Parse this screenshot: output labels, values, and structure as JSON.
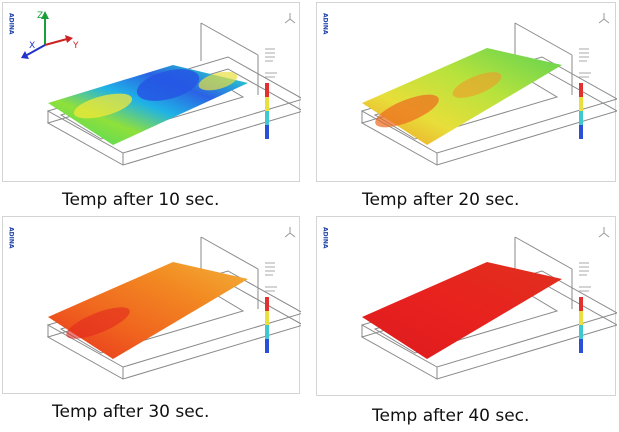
{
  "brand_text": "ADINA",
  "panels": [
    {
      "caption": "Temp after 10 sec.",
      "field": "blue-green",
      "axis_labels": {
        "z": "Z",
        "x": "X",
        "y": "Y"
      }
    },
    {
      "caption": "Temp after 20 sec.",
      "field": "yellow-orange"
    },
    {
      "caption": "Temp after 30 sec.",
      "field": "orange-red"
    },
    {
      "caption": "Temp after 40 sec.",
      "field": "red"
    }
  ],
  "colors": {
    "blue": "#2255e8",
    "cyan": "#23c9d8",
    "green": "#52d84a",
    "yellow": "#e8e43a",
    "orange": "#f07a1e",
    "red": "#e2221e"
  }
}
